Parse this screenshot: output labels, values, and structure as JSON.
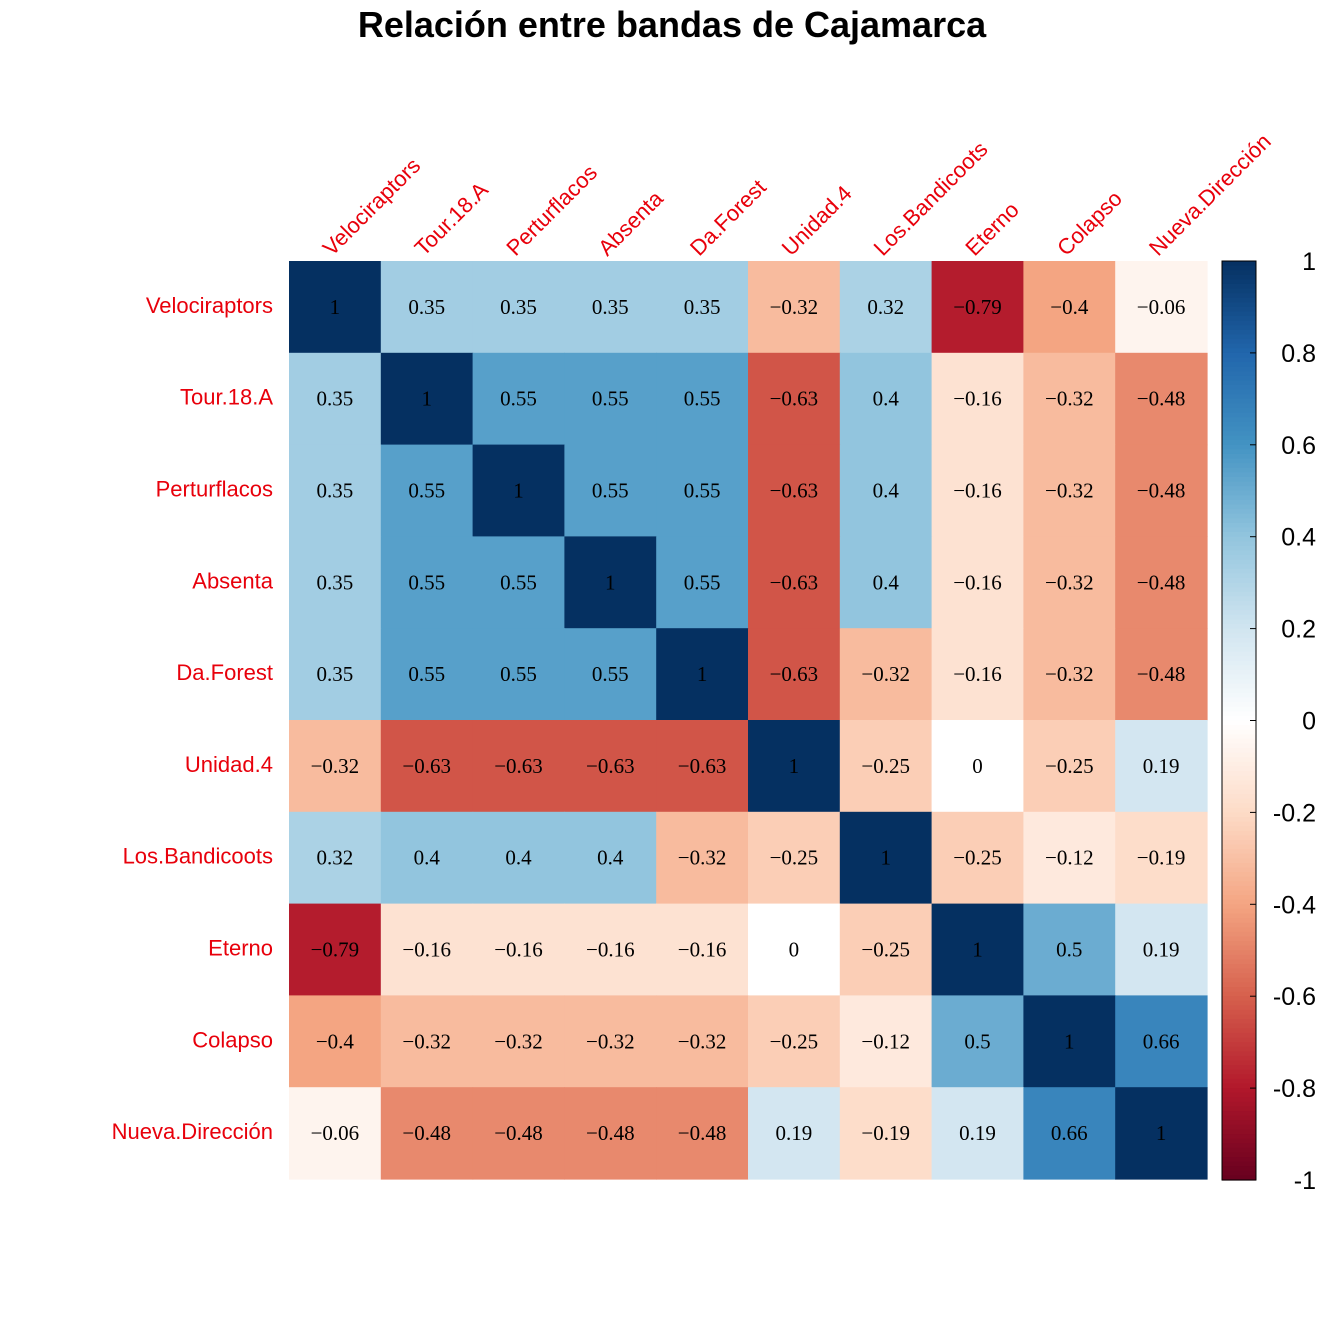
{
  "chart_data": {
    "type": "heatmap",
    "title": "Relación entre bandas de Cajamarca",
    "labels": [
      "Velociraptors",
      "Tour.18.A",
      "Perturflacos",
      "Absenta",
      "Da.Forest",
      "Unidad.4",
      "Los.Bandicoots",
      "Eterno",
      "Colapso",
      "Nueva.Dirección"
    ],
    "matrix": [
      [
        1,
        0.35,
        0.35,
        0.35,
        0.35,
        -0.32,
        0.32,
        -0.79,
        -0.4,
        -0.06
      ],
      [
        0.35,
        1,
        0.55,
        0.55,
        0.55,
        -0.63,
        0.4,
        -0.16,
        -0.32,
        -0.48
      ],
      [
        0.35,
        0.55,
        1,
        0.55,
        0.55,
        -0.63,
        0.4,
        -0.16,
        -0.32,
        -0.48
      ],
      [
        0.35,
        0.55,
        0.55,
        1,
        0.55,
        -0.63,
        0.4,
        -0.16,
        -0.32,
        -0.48
      ],
      [
        0.35,
        0.55,
        0.55,
        0.55,
        1,
        -0.63,
        -0.32,
        -0.16,
        -0.32,
        -0.48
      ],
      [
        -0.32,
        -0.63,
        -0.63,
        -0.63,
        -0.63,
        1,
        -0.25,
        0,
        -0.25,
        0.19
      ],
      [
        0.32,
        0.4,
        0.4,
        0.4,
        -0.32,
        -0.25,
        1,
        -0.25,
        -0.12,
        -0.19
      ],
      [
        -0.79,
        -0.16,
        -0.16,
        -0.16,
        -0.16,
        0,
        -0.25,
        1,
        0.5,
        0.19
      ],
      [
        -0.4,
        -0.32,
        -0.32,
        -0.32,
        -0.32,
        -0.25,
        -0.12,
        0.5,
        1,
        0.66
      ],
      [
        -0.06,
        -0.48,
        -0.48,
        -0.48,
        -0.48,
        0.19,
        -0.19,
        0.19,
        0.66,
        1
      ]
    ],
    "color_scale": {
      "min": -1,
      "max": 1,
      "ticks": [
        "1",
        "0.8",
        "0.6",
        "0.4",
        "0.2",
        "0",
        "-0.2",
        "-0.4",
        "-0.6",
        "-0.8",
        "-1"
      ],
      "tick_values": [
        1,
        0.8,
        0.6,
        0.4,
        0.2,
        0,
        -0.2,
        -0.4,
        -0.6,
        -0.8,
        -1
      ],
      "palette": [
        "#67001f",
        "#b2182b",
        "#d6604d",
        "#f4a582",
        "#fddbc7",
        "#ffffff",
        "#d1e5f0",
        "#92c5de",
        "#4393c3",
        "#2166ac",
        "#053061"
      ]
    },
    "label_color": "#e8000b"
  }
}
